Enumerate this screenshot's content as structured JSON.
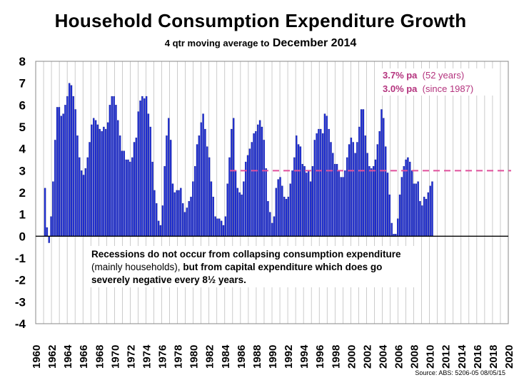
{
  "title": "Household Consumption Expenditure Growth",
  "subtitle": {
    "prefix": "4 qtr moving average to",
    "suffix": "December 2014"
  },
  "rate_box": {
    "line1_value": "3.7% pa",
    "line1_note": "(52 years)",
    "line2_value": "3.0% pa",
    "line2_note": "(since 1987)"
  },
  "note": {
    "part1": "Recessions do not occur from collapsing consumption expenditure",
    "part2": "(mainly households),",
    "part3": "but from capital expenditure which does go severely negative every 8½ years."
  },
  "source": "Source: ABS: 5206-05 08/05/15",
  "colors": {
    "bar_fill": "#1f2fd6",
    "bar_stroke": "#07107a",
    "reference_line": "#e0509c",
    "rate_text": "#b4337e",
    "grid": "#aaaaaa",
    "axis_zero": "#000000"
  },
  "chart_data": {
    "type": "bar",
    "title": "Household Consumption Expenditure Growth",
    "subtitle": "4 qtr moving average to December 2014",
    "xlabel": "",
    "ylabel": "",
    "ylim": [
      -4,
      8
    ],
    "yticks": [
      "8",
      "7",
      "6",
      "5",
      "4",
      "3",
      "2",
      "1",
      "0",
      "-1",
      "-2",
      "-3",
      "-4"
    ],
    "xlim": [
      1960,
      2020
    ],
    "xticks": [
      "1960",
      "1962",
      "1964",
      "1966",
      "1968",
      "1970",
      "1972",
      "1974",
      "1976",
      "1978",
      "1980",
      "1982",
      "1984",
      "1986",
      "1988",
      "1990",
      "1992",
      "1994",
      "1996",
      "1998",
      "2000",
      "2002",
      "2004",
      "2006",
      "2008",
      "2010",
      "2012",
      "2014",
      "2016",
      "2018",
      "2020"
    ],
    "grid": "vertical lines at each year",
    "bar_values": [
      2.2,
      0.4,
      -0.3,
      0.9,
      2.5,
      4.4,
      5.9,
      5.9,
      5.5,
      5.6,
      6.0,
      6.4,
      7.0,
      6.9,
      6.4,
      5.8,
      4.6,
      3.6,
      3.0,
      2.8,
      3.1,
      3.6,
      4.3,
      5.1,
      5.4,
      5.3,
      5.1,
      4.9,
      4.8,
      5.0,
      4.9,
      5.2,
      6.0,
      6.4,
      6.4,
      6.0,
      5.3,
      4.6,
      3.9,
      3.9,
      3.5,
      3.5,
      3.4,
      3.6,
      4.3,
      4.5,
      5.7,
      6.2,
      6.4,
      6.3,
      6.4,
      5.6,
      5.0,
      3.4,
      2.1,
      1.5,
      0.7,
      0.5,
      1.4,
      3.2,
      4.6,
      5.4,
      4.4,
      2.4,
      2.0,
      2.1,
      2.1,
      2.2,
      1.5,
      1.1,
      1.3,
      1.6,
      1.8,
      2.5,
      3.2,
      4.2,
      4.6,
      5.2,
      5.6,
      4.9,
      4.1,
      3.6,
      2.5,
      1.8,
      0.9,
      0.8,
      0.8,
      0.7,
      0.5,
      0.9,
      2.4,
      3.6,
      4.9,
      5.4,
      3.0,
      2.2,
      2.0,
      1.9,
      2.5,
      3.4,
      3.7,
      4.0,
      4.3,
      4.7,
      4.8,
      5.1,
      5.3,
      5.0,
      4.4,
      3.1,
      1.6,
      1.1,
      0.6,
      0.9,
      2.2,
      2.6,
      2.7,
      2.3,
      1.8,
      1.7,
      1.8,
      2.4,
      3.0,
      3.6,
      4.6,
      4.2,
      4.1,
      3.3,
      3.2,
      2.9,
      3.0,
      2.5,
      3.2,
      4.4,
      4.7,
      4.9,
      4.9,
      4.7,
      5.6,
      5.5,
      4.9,
      4.3,
      3.8,
      3.3,
      3.3,
      3.0,
      2.7,
      2.7,
      3.0,
      3.6,
      4.2,
      4.5,
      4.3,
      3.8,
      4.3,
      5.0,
      5.8,
      5.8,
      4.6,
      3.8,
      3.2,
      3.1,
      3.2,
      3.5,
      4.2,
      4.8,
      5.8,
      5.4,
      4.1,
      2.9,
      1.9,
      0.6,
      0.1,
      0.1,
      0.8,
      1.9,
      2.7,
      3.2,
      3.5,
      3.6,
      3.4,
      3.0,
      2.4,
      2.4,
      2.5,
      1.6,
      1.4,
      1.8,
      1.7,
      2.0,
      2.3,
      2.5
    ],
    "reference_line": {
      "value": 3.0,
      "style": "dashed"
    },
    "annotations": [
      "3.7% pa (52 years)",
      "3.0% pa (since 1987)"
    ]
  }
}
